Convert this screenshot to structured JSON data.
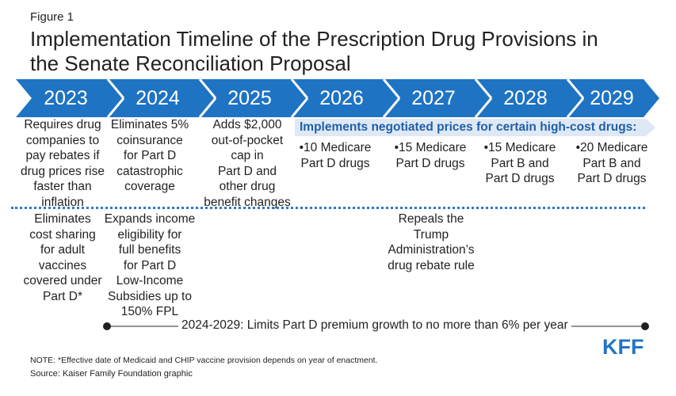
{
  "figure_label": "Figure 1",
  "title_lines": [
    "Implementation Timeline of the Prescription Drug Provisions in",
    "the Senate Reconciliation Proposal"
  ],
  "colors": {
    "arrow": "#1f73c3",
    "banner": "#dfe9f5",
    "banner_text": "#1f5fa8",
    "dotted": "#2f79c0",
    "logo": "#2374c6"
  },
  "years": [
    "2023",
    "2024",
    "2025",
    "2026",
    "2027",
    "2028",
    "2029"
  ],
  "upper": {
    "y2023": [
      "Requires drug",
      "companies to",
      "pay rebates if",
      "drug prices rise",
      "faster than",
      "inflation"
    ],
    "y2024": [
      "Eliminates 5%",
      "coinsurance",
      "for Part D",
      "catastrophic",
      "coverage"
    ],
    "y2025": [
      "Adds $2,000",
      "out-of-pocket",
      "cap in",
      "Part D and",
      "other drug",
      "benefit changes"
    ]
  },
  "banner": "Implements negotiated prices for certain high-cost drugs:",
  "negotiated": {
    "y2026": [
      "•10 Medicare",
      "Part D drugs"
    ],
    "y2027": [
      "•15 Medicare",
      "Part D drugs"
    ],
    "y2028": [
      "•15 Medicare",
      "Part B and",
      "Part D drugs"
    ],
    "y2029": [
      "•20 Medicare",
      "Part B and",
      "Part D drugs"
    ]
  },
  "lower": {
    "y2023": [
      "Eliminates",
      "cost sharing",
      "for adult",
      "vaccines",
      "covered under",
      "Part D*"
    ],
    "y2024": [
      "Expands income",
      "eligibility for",
      "full benefits",
      "for Part D",
      "Low-Income",
      "Subsidies up to",
      "150% FPL"
    ],
    "y2027": [
      "Repeals the",
      "Trump",
      "Administration’s",
      "drug rebate rule"
    ]
  },
  "premium_text": "2024-2029: Limits Part D premium growth to no more than 6% per year",
  "note": "NOTE: *Effective date of Medicaid and CHIP vaccine provision depends on year of enactment.",
  "source": "Source: Kaiser Family Foundation graphic",
  "logo": "KFF"
}
